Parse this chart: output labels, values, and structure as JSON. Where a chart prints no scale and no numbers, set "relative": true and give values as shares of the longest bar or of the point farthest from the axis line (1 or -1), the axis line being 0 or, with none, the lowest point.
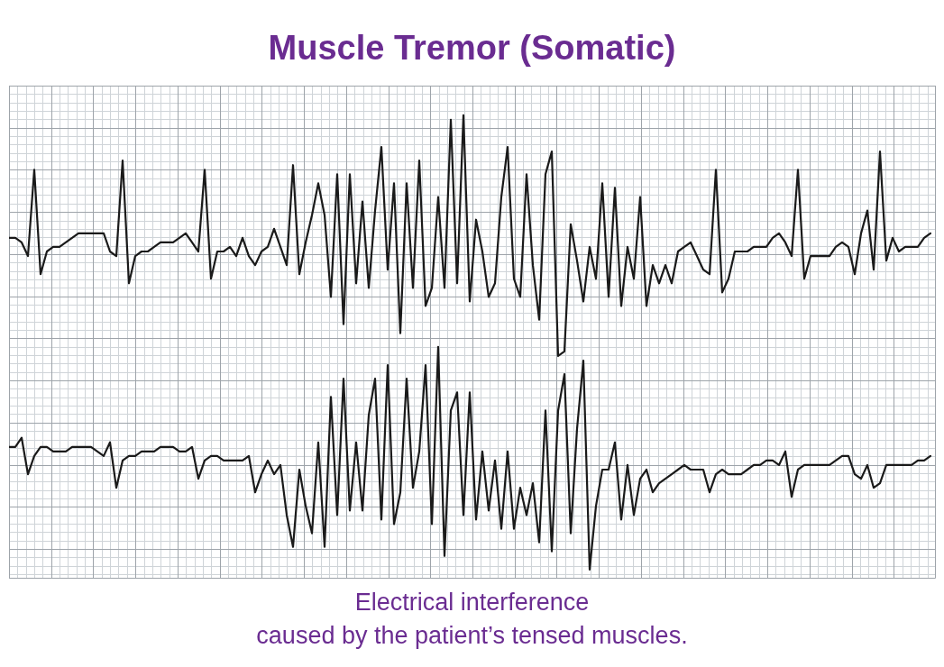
{
  "chart_data": {
    "type": "line",
    "title": "Muscle Tremor (Somatic)",
    "relative": true,
    "grid": true,
    "legend": false,
    "marker": "none",
    "line_style": "solid",
    "annotations": [
      "Electrical interference\ncaused by the patient’s tensed muscles."
    ],
    "categories": [
      null,
      null,
      null,
      null,
      null,
      null,
      null,
      null,
      null,
      null,
      null,
      null,
      null,
      null,
      null,
      null,
      null,
      null,
      null,
      null,
      null,
      null,
      null,
      null,
      null,
      null,
      null,
      null,
      null,
      null,
      null,
      null,
      null,
      null,
      null,
      null,
      null,
      null,
      null,
      null,
      null,
      null,
      null,
      null,
      null,
      null,
      null,
      null,
      null,
      null,
      null,
      null,
      null,
      null,
      null,
      null,
      null,
      null,
      null,
      null,
      null,
      null,
      null,
      null,
      null,
      null,
      null,
      null,
      null,
      null,
      null,
      null,
      null,
      null,
      null,
      null,
      null,
      null,
      null,
      null,
      null,
      null,
      null,
      null,
      null,
      null,
      null,
      null,
      null,
      null,
      null,
      null,
      null,
      null,
      null,
      null,
      null,
      null,
      null,
      null,
      null,
      null,
      null,
      null,
      null,
      null,
      null,
      null,
      null,
      null,
      null,
      null,
      null,
      null,
      null,
      null,
      null,
      null,
      null,
      null,
      null,
      null,
      null,
      null,
      null,
      null,
      null,
      null,
      null,
      null,
      null,
      null,
      null,
      null,
      null,
      null,
      null,
      null,
      null,
      null,
      null,
      null,
      null,
      null,
      null,
      null,
      null
    ],
    "series": [
      {
        "color": "#1a1a1a",
        "values": [
          0.73,
          0.73,
          0.72,
          0.69,
          0.88,
          0.65,
          0.7,
          0.71,
          0.71,
          0.72,
          0.73,
          0.74,
          0.74,
          0.74,
          0.74,
          0.74,
          0.7,
          0.69,
          0.9,
          0.63,
          0.69,
          0.7,
          0.7,
          0.71,
          0.72,
          0.72,
          0.72,
          0.73,
          0.74,
          0.72,
          0.7,
          0.88,
          0.64,
          0.7,
          0.7,
          0.71,
          0.69,
          0.73,
          0.69,
          0.67,
          0.7,
          0.71,
          0.75,
          0.71,
          0.67,
          0.89,
          0.65,
          0.72,
          0.78,
          0.85,
          0.78,
          0.6,
          0.87,
          0.54,
          0.87,
          0.63,
          0.81,
          0.62,
          0.79,
          0.93,
          0.66,
          0.85,
          0.52,
          0.85,
          0.62,
          0.9,
          0.58,
          0.62,
          0.82,
          0.62,
          0.99,
          0.63,
          1.0,
          0.59,
          0.77,
          0.7,
          0.6,
          0.63,
          0.82,
          0.93,
          0.64,
          0.6,
          0.87,
          0.67,
          0.55,
          0.87,
          0.92,
          0.47,
          0.48,
          0.76,
          0.68,
          0.59,
          0.71,
          0.64,
          0.85,
          0.6,
          0.84,
          0.58,
          0.71,
          0.64,
          0.82,
          0.58,
          0.67,
          0.63,
          0.67,
          0.63,
          0.7,
          0.71,
          0.72,
          0.69,
          0.66,
          0.65,
          0.88,
          0.61,
          0.64,
          0.7,
          0.7,
          0.7,
          0.71,
          0.71,
          0.71,
          0.73,
          0.74,
          0.72,
          0.69,
          0.88,
          0.64,
          0.69,
          0.69,
          0.69,
          0.69,
          0.71,
          0.72,
          0.71,
          0.65,
          0.74,
          0.79,
          0.66,
          0.92,
          0.68,
          0.73,
          0.7,
          0.71,
          0.71,
          0.71,
          0.73,
          0.74
        ]
      },
      {
        "color": "#1a1a1a",
        "values": [
          0.27,
          0.27,
          0.29,
          0.21,
          0.25,
          0.27,
          0.27,
          0.26,
          0.26,
          0.26,
          0.27,
          0.27,
          0.27,
          0.27,
          0.26,
          0.25,
          0.28,
          0.18,
          0.24,
          0.25,
          0.25,
          0.26,
          0.26,
          0.26,
          0.27,
          0.27,
          0.27,
          0.26,
          0.26,
          0.27,
          0.2,
          0.24,
          0.25,
          0.25,
          0.24,
          0.24,
          0.24,
          0.24,
          0.25,
          0.17,
          0.21,
          0.24,
          0.21,
          0.23,
          0.12,
          0.05,
          0.22,
          0.14,
          0.08,
          0.28,
          0.05,
          0.38,
          0.12,
          0.42,
          0.13,
          0.28,
          0.13,
          0.34,
          0.42,
          0.11,
          0.45,
          0.1,
          0.17,
          0.42,
          0.18,
          0.26,
          0.45,
          0.1,
          0.49,
          0.03,
          0.35,
          0.39,
          0.12,
          0.39,
          0.11,
          0.26,
          0.13,
          0.24,
          0.09,
          0.26,
          0.09,
          0.18,
          0.12,
          0.19,
          0.06,
          0.35,
          0.04,
          0.35,
          0.43,
          0.08,
          0.31,
          0.46,
          0.0,
          0.14,
          0.22,
          0.22,
          0.28,
          0.11,
          0.23,
          0.12,
          0.2,
          0.22,
          0.17,
          0.19,
          0.2,
          0.21,
          0.22,
          0.23,
          0.22,
          0.22,
          0.22,
          0.17,
          0.21,
          0.22,
          0.21,
          0.21,
          0.21,
          0.22,
          0.23,
          0.23,
          0.24,
          0.24,
          0.23,
          0.26,
          0.16,
          0.22,
          0.23,
          0.23,
          0.23,
          0.23,
          0.23,
          0.24,
          0.25,
          0.25,
          0.21,
          0.2,
          0.23,
          0.18,
          0.19,
          0.23,
          0.23,
          0.23,
          0.23,
          0.23,
          0.24,
          0.24,
          0.25
        ]
      }
    ]
  }
}
